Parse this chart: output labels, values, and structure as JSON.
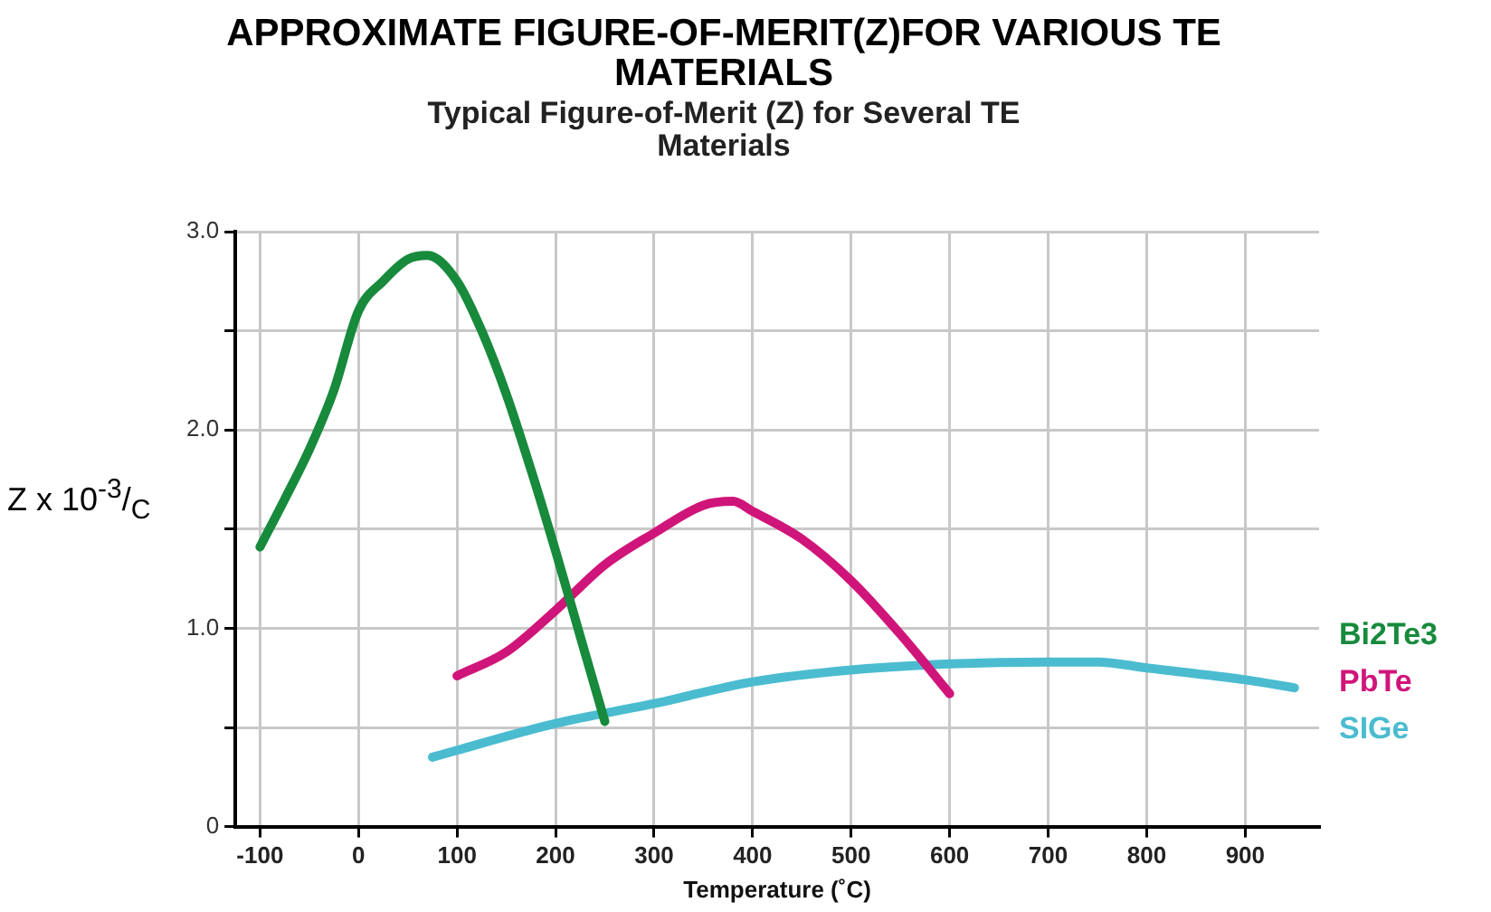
{
  "chart_data": {
    "type": "line",
    "title": "APPROXIMATE FIGURE-OF-MERIT(Z)FOR VARIOUS TE MATERIALS",
    "subtitle": "Typical Figure-of-Merit (Z) for Several TE Materials",
    "xlabel": "Temperature (˚C)",
    "ylabel": "Z x 10$^{-3}$/$_{C}$",
    "xlim": [
      -125,
      975
    ],
    "xticks": [
      -100,
      0,
      100,
      200,
      300,
      400,
      500,
      600,
      700,
      800,
      900
    ],
    "ylim": [
      0,
      3
    ],
    "yticks": [
      {
        "value": 0,
        "label": "0"
      },
      {
        "value": 0.5,
        "label": null
      },
      {
        "value": 1,
        "label": "1.0"
      },
      {
        "value": 1.5,
        "label": null
      },
      {
        "value": 2,
        "label": "2.0"
      },
      {
        "value": 2.5,
        "label": null
      },
      {
        "value": 3,
        "label": "3.0"
      }
    ],
    "grid": true,
    "legend": "right",
    "marker": "none",
    "line_style": "solid",
    "series": [
      {
        "name": "Bi2Te3",
        "color": "#178a3c",
        "x": [
          -100,
          -75,
          -50,
          -25,
          0,
          25,
          50,
          70,
          100,
          125,
          150,
          175,
          200,
          225,
          250
        ],
        "values": [
          1.41,
          1.65,
          1.9,
          2.2,
          2.6,
          2.75,
          2.86,
          2.88,
          2.75,
          2.5,
          2.18,
          1.8,
          1.39,
          0.96,
          0.53
        ]
      },
      {
        "name": "PbTe",
        "color": "#d0157a",
        "x": [
          100,
          150,
          200,
          250,
          300,
          350,
          380,
          400,
          450,
          500,
          550,
          600
        ],
        "values": [
          0.76,
          0.88,
          1.09,
          1.32,
          1.48,
          1.62,
          1.64,
          1.59,
          1.45,
          1.24,
          0.97,
          0.67
        ]
      },
      {
        "name": "SIGe",
        "color": "#4bbcd0",
        "x": [
          75,
          200,
          300,
          400,
          500,
          600,
          700,
          750,
          800,
          900,
          950
        ],
        "values": [
          0.35,
          0.52,
          0.62,
          0.73,
          0.79,
          0.82,
          0.83,
          0.83,
          0.8,
          0.74,
          0.7
        ]
      }
    ]
  }
}
